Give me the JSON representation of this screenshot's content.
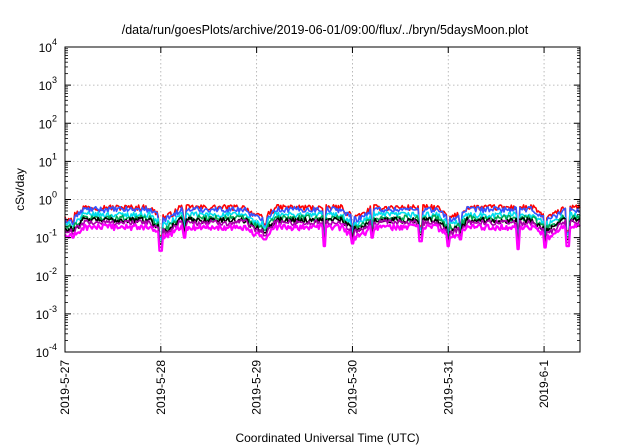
{
  "chart_data": {
    "type": "line",
    "title": "/data/run/goesPlots/archive/2019-06-01/09:00/flux/../bryn/5daysMoon.plot",
    "xlabel": "Coordinated Universal Time (UTC)",
    "ylabel": "cSv/day",
    "y_scale": "log",
    "ylim": [
      0.0001,
      10000
    ],
    "y_ticks": [
      {
        "value": 0.0001,
        "base": "10",
        "exp": "-4"
      },
      {
        "value": 0.001,
        "base": "10",
        "exp": "-3"
      },
      {
        "value": 0.01,
        "base": "10",
        "exp": "-2"
      },
      {
        "value": 0.1,
        "base": "10",
        "exp": "-1"
      },
      {
        "value": 1,
        "base": "10",
        "exp": "0"
      },
      {
        "value": 10,
        "base": "10",
        "exp": "1"
      },
      {
        "value": 100,
        "base": "10",
        "exp": "2"
      },
      {
        "value": 1000,
        "base": "10",
        "exp": "3"
      },
      {
        "value": 10000,
        "base": "10",
        "exp": "4"
      }
    ],
    "xlim": [
      "2019-05-27",
      "2019-06-01 09:00"
    ],
    "x_ticks": [
      "2019-5-27",
      "2019-5-28",
      "2019-5-29",
      "2019-5-30",
      "2019-5-31",
      "2019-6-1"
    ],
    "x_tick_values": [
      "2019-05-27",
      "2019-05-28",
      "2019-05-29",
      "2019-05-30",
      "2019-05-31",
      "2019-06-01"
    ],
    "grid": true,
    "legend": "none",
    "series": [
      {
        "color": "#ff0000",
        "base": 0.62,
        "ratio": 1.0
      },
      {
        "color": "#3355ff",
        "base": 0.55,
        "ratio": 1.0
      },
      {
        "color": "#00ddee",
        "base": 0.4,
        "ratio": 1.0
      },
      {
        "color": "#00aa55",
        "base": 0.33,
        "ratio": 1.0
      },
      {
        "color": "#000000",
        "base": 0.29,
        "ratio": 1.0
      },
      {
        "color": "#aa00aa",
        "base": 0.25,
        "ratio": 1.0
      },
      {
        "color": "#ff00ff",
        "base": 0.19,
        "ratio": 1.0
      }
    ],
    "dips": [
      {
        "t": "2019-05-27 00:30",
        "value": 0.11
      },
      {
        "t": "2019-05-27 02:00",
        "value": 0.1
      },
      {
        "t": "2019-05-28 00:00",
        "value": 0.045
      },
      {
        "t": "2019-05-28 06:00",
        "value": 0.1
      },
      {
        "t": "2019-05-29 02:00",
        "value": 0.09
      },
      {
        "t": "2019-05-29 17:00",
        "value": 0.06
      },
      {
        "t": "2019-05-30 00:00",
        "value": 0.07
      },
      {
        "t": "2019-05-30 05:00",
        "value": 0.1
      },
      {
        "t": "2019-05-30 17:00",
        "value": 0.08
      },
      {
        "t": "2019-05-31 00:00",
        "value": 0.06
      },
      {
        "t": "2019-05-31 03:00",
        "value": 0.09
      },
      {
        "t": "2019-05-31 17:30",
        "value": 0.05
      },
      {
        "t": "2019-06-01 00:15",
        "value": 0.055
      },
      {
        "t": "2019-06-01 06:00",
        "value": 0.06
      }
    ],
    "trough_centers": [
      "2019-05-27 01:00",
      "2019-05-28 01:00",
      "2019-05-29 01:00",
      "2019-05-30 01:00",
      "2019-05-31 01:00",
      "2019-06-01 01:00"
    ],
    "trough_level": 0.33
  }
}
